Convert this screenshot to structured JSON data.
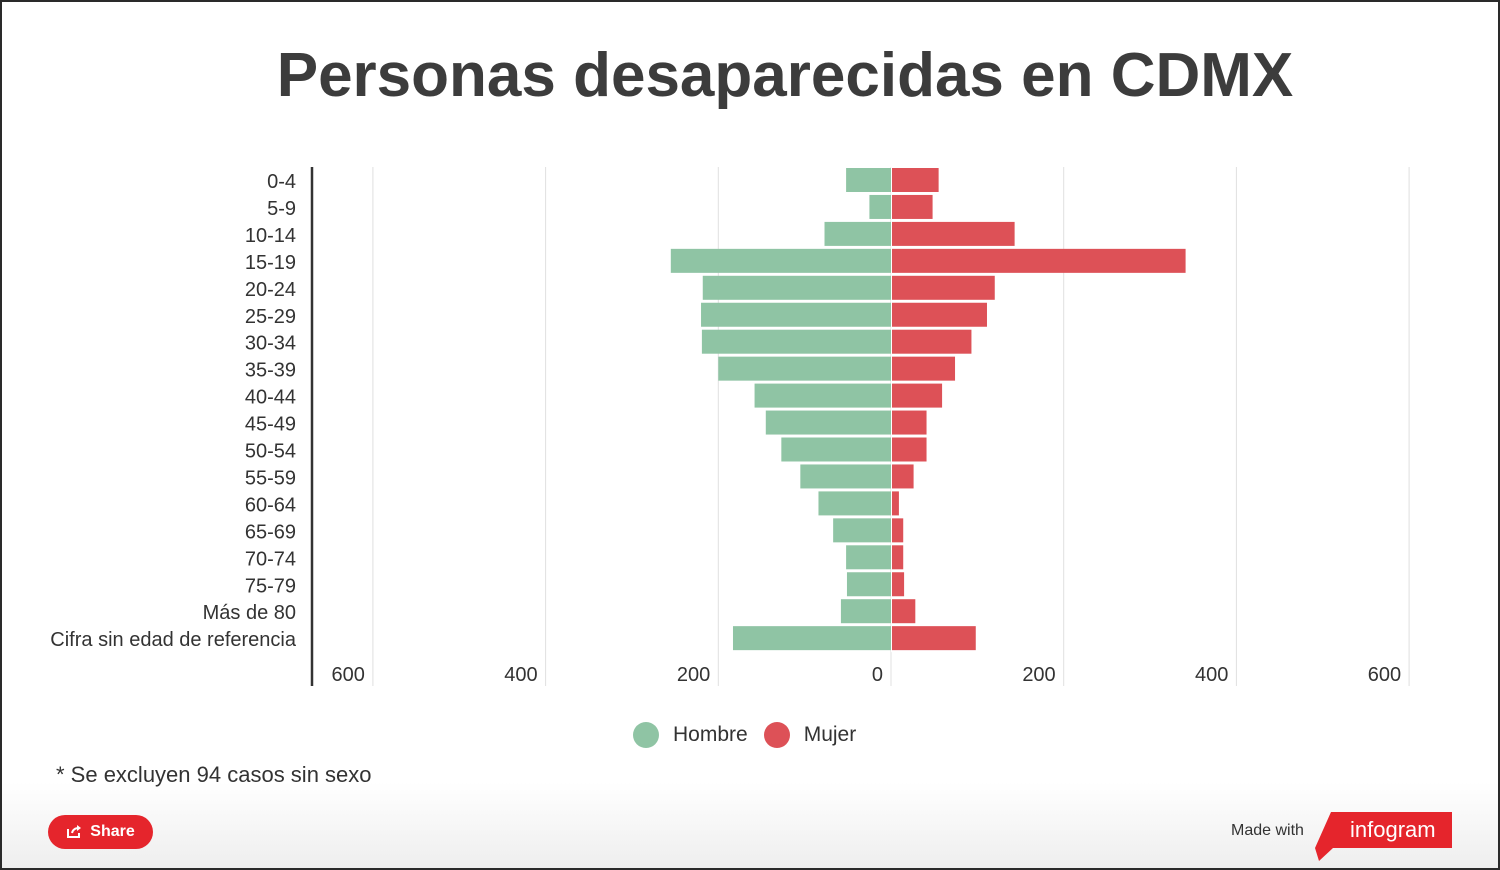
{
  "title": "Personas desaparecidas en CDMX",
  "footnote": "* Se excluyen 94 casos sin sexo",
  "share_label": "Share",
  "made_with": "Made with",
  "brand": "infogram",
  "colors": {
    "hombre": "#8fc4a4",
    "mujer": "#dd5157",
    "share": "#e5252c",
    "grid": "#e0e0e0",
    "axis": "#333333"
  },
  "chart_data": {
    "type": "bar",
    "orientation": "horizontal",
    "title": "Personas desaparecidas en CDMX",
    "categories": [
      "0-4",
      "5-9",
      "10-14",
      "15-19",
      "20-24",
      "25-29",
      "30-34",
      "35-39",
      "40-44",
      "45-49",
      "50-54",
      "55-59",
      "60-64",
      "65-69",
      "70-74",
      "75-79",
      "Más de 80",
      "Cifra sin edad de referencia"
    ],
    "series": [
      {
        "name": "Hombre",
        "values": [
          52,
          25,
          77,
          255,
          218,
          220,
          219,
          200,
          158,
          145,
          127,
          105,
          84,
          67,
          52,
          51,
          58,
          183
        ]
      },
      {
        "name": "Mujer",
        "values": [
          54,
          47,
          142,
          340,
          119,
          110,
          92,
          73,
          58,
          40,
          40,
          25,
          8,
          13,
          13,
          14,
          27,
          97
        ]
      }
    ],
    "x_ticks": [
      "600",
      "400",
      "200",
      "0",
      "200",
      "400",
      "600"
    ],
    "xlim": [
      -600,
      600
    ],
    "grid": true,
    "legend_position": "bottom"
  }
}
